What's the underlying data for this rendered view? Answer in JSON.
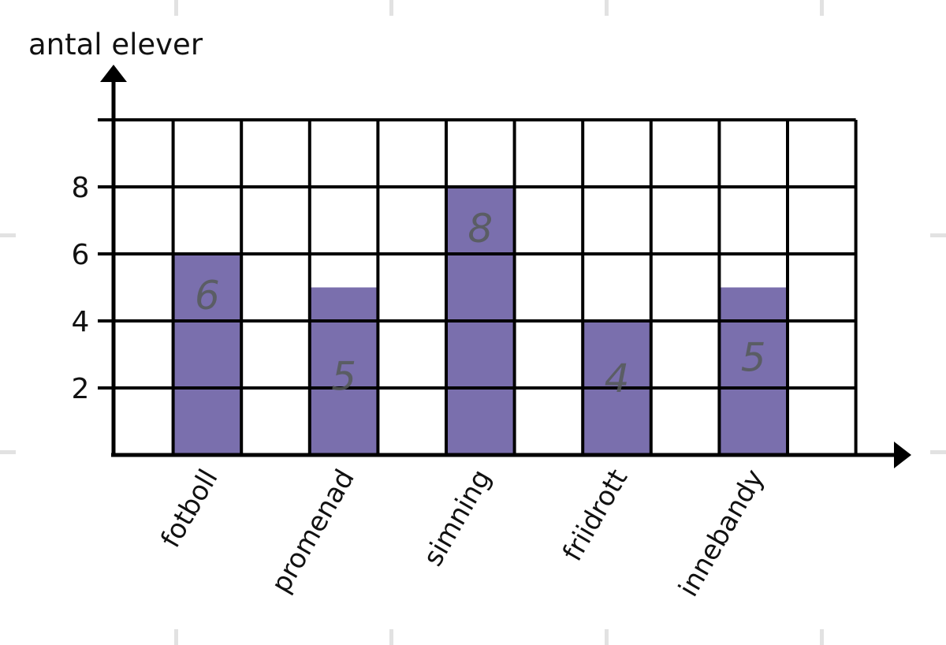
{
  "chart_data": {
    "type": "bar",
    "ylabel": "antal elever",
    "xlabel": "",
    "categories": [
      "fotboll",
      "promenad",
      "simning",
      "friidrott",
      "innebandy"
    ],
    "values": [
      6,
      5,
      8,
      4,
      5
    ],
    "data_labels": [
      "6",
      "5",
      "8",
      "4",
      "5"
    ],
    "yticks": [
      "2",
      "4",
      "6",
      "8"
    ],
    "ylim": [
      0,
      10
    ],
    "grid": true,
    "bar_color": "#7a6fad",
    "grid_color": "#000000",
    "label_color": "#555a58"
  }
}
